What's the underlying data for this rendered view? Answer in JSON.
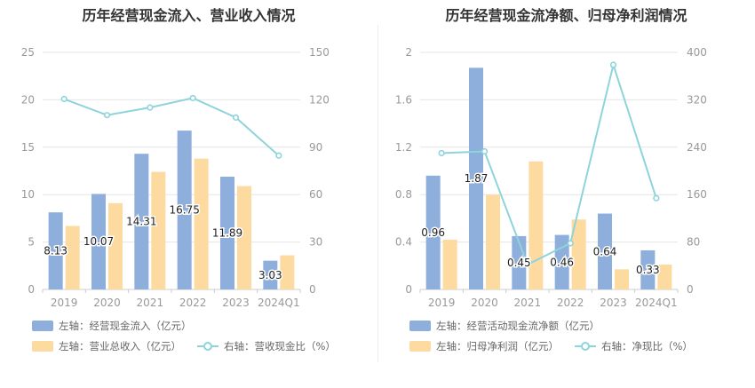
{
  "chart_data": [
    {
      "type": "bar",
      "title": "历年经营现金流入、营业收入情况",
      "categories": [
        "2019",
        "2020",
        "2021",
        "2022",
        "2023",
        "2024Q1"
      ],
      "left_axis": {
        "ylim": [
          0,
          25
        ],
        "ticks": [
          "0",
          "5",
          "10",
          "15",
          "20",
          "25"
        ]
      },
      "right_axis": {
        "ylim": [
          0,
          150
        ],
        "ticks": [
          "0",
          "30",
          "60",
          "90",
          "120",
          "150"
        ]
      },
      "series": [
        {
          "name": "左轴：经营现金流入（亿元）",
          "kind": "bar",
          "axis": "left",
          "color": "#8eaedb",
          "values": [
            8.13,
            10.07,
            14.31,
            16.75,
            11.89,
            3.03
          ],
          "labels": [
            "8.13",
            "10.07",
            "14.31",
            "16.75",
            "11.89",
            "3.03"
          ]
        },
        {
          "name": "左轴：营业总收入（亿元）",
          "kind": "bar",
          "axis": "left",
          "color": "#fddba0",
          "values": [
            6.7,
            9.1,
            12.4,
            13.8,
            10.9,
            3.6
          ]
        },
        {
          "name": "右轴：营收现金比（%）",
          "kind": "line",
          "axis": "right",
          "color": "#8dd4db",
          "values": [
            120.5,
            110.3,
            115.1,
            121.1,
            108.8,
            84.7
          ]
        }
      ]
    },
    {
      "type": "bar",
      "title": "历年经营现金流净额、归母净利润情况",
      "categories": [
        "2019",
        "2020",
        "2021",
        "2022",
        "2023",
        "2024Q1"
      ],
      "left_axis": {
        "ylim": [
          0,
          2
        ],
        "ticks": [
          "0",
          "0.4",
          "0.8",
          "1.2",
          "1.6",
          "2"
        ]
      },
      "right_axis": {
        "ylim": [
          0,
          400
        ],
        "ticks": [
          "0",
          "80",
          "160",
          "240",
          "320",
          "400"
        ]
      },
      "series": [
        {
          "name": "左轴：经营活动现金流净额（亿元）",
          "kind": "bar",
          "axis": "left",
          "color": "#8eaedb",
          "values": [
            0.96,
            1.87,
            0.45,
            0.46,
            0.64,
            0.33
          ],
          "labels": [
            "0.96",
            "1.87",
            "0.45",
            "0.46",
            "0.64",
            "0.33"
          ]
        },
        {
          "name": "左轴：归母净利润（亿元）",
          "kind": "bar",
          "axis": "left",
          "color": "#fddba0",
          "values": [
            0.42,
            0.8,
            1.08,
            0.59,
            0.17,
            0.21
          ]
        },
        {
          "name": "右轴：净现比（%）",
          "kind": "line",
          "axis": "right",
          "color": "#8dd4db",
          "values": [
            230,
            233,
            42,
            78,
            379,
            154
          ]
        }
      ]
    }
  ]
}
